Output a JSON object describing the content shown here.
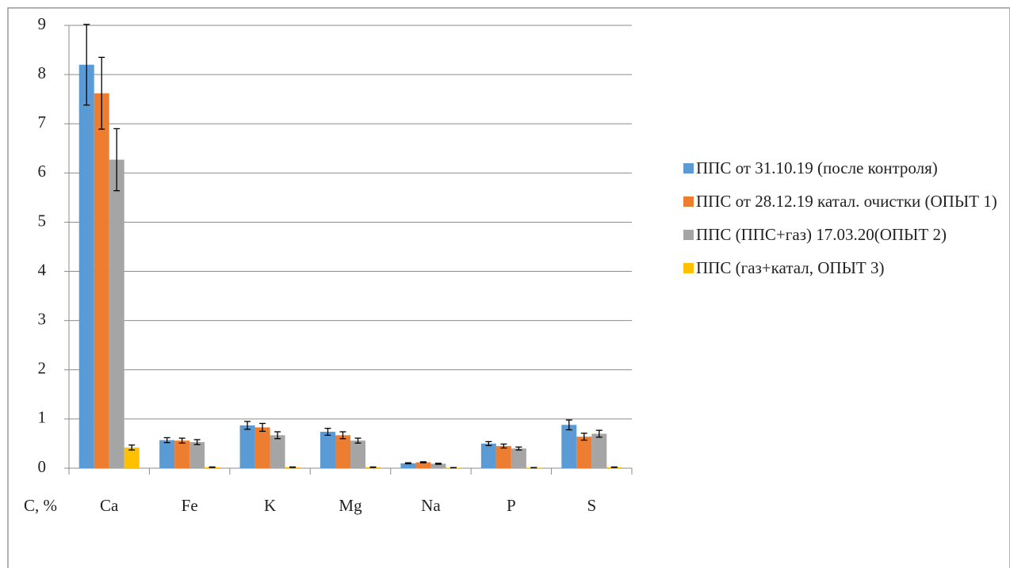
{
  "chart_data": {
    "type": "bar",
    "y_label": "C, %",
    "categories": [
      "Ca",
      "Fe",
      "K",
      "Mg",
      "Na",
      "P",
      "S"
    ],
    "series": [
      {
        "name": "ППС от 31.10.19 (после контроля)",
        "color": "#5b9bd5",
        "values": [
          8.2,
          0.57,
          0.87,
          0.74,
          0.1,
          0.5,
          0.88
        ],
        "errors": [
          0.82,
          0.05,
          0.08,
          0.07,
          0.01,
          0.04,
          0.1
        ]
      },
      {
        "name": "ППС от 28.12.19 катал. очистки (ОПЫТ 1)",
        "color": "#ed7d31",
        "values": [
          7.62,
          0.56,
          0.83,
          0.67,
          0.12,
          0.45,
          0.64
        ],
        "errors": [
          0.73,
          0.05,
          0.08,
          0.07,
          0.01,
          0.04,
          0.07
        ]
      },
      {
        "name": "ППС (ППС+газ) 17.03.20(ОПЫТ 2)",
        "color": "#a5a5a5",
        "values": [
          6.27,
          0.53,
          0.67,
          0.56,
          0.09,
          0.4,
          0.7
        ],
        "errors": [
          0.63,
          0.05,
          0.07,
          0.05,
          0.01,
          0.03,
          0.07
        ]
      },
      {
        "name": "ППС  (газ+катал, ОПЫТ 3)",
        "color": "#ffc000",
        "values": [
          0.42,
          0.02,
          0.02,
          0.02,
          0.01,
          0.01,
          0.02
        ],
        "errors": [
          0.05,
          0.005,
          0.005,
          0.005,
          0.003,
          0.003,
          0.005
        ]
      }
    ],
    "ylim": [
      0,
      9
    ],
    "yticks": [
      0,
      1,
      2,
      3,
      4,
      5,
      6,
      7,
      8,
      9
    ],
    "grid": true
  }
}
